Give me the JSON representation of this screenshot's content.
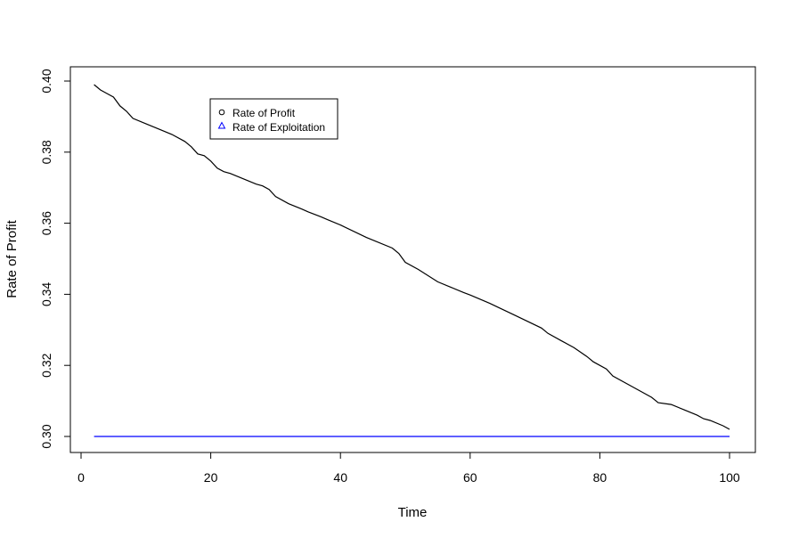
{
  "chart_data": {
    "type": "line",
    "xlabel": "Time",
    "ylabel": "Rate of Profit",
    "xlim": [
      0,
      100
    ],
    "ylim": [
      0.3,
      0.4
    ],
    "x_ticks": [
      "0",
      "20",
      "40",
      "60",
      "80",
      "100"
    ],
    "y_ticks": [
      "0.30",
      "0.32",
      "0.34",
      "0.36",
      "0.38",
      "0.40"
    ],
    "legend": {
      "position": "top-left",
      "entries": [
        {
          "label": "Rate of Profit",
          "symbol": "circle",
          "color": "#000000"
        },
        {
          "label": "Rate of Exploitation",
          "symbol": "triangle",
          "color": "#0000ff"
        }
      ]
    },
    "series": [
      {
        "name": "Rate of Profit",
        "color": "#000000",
        "points": [
          [
            2,
            0.399
          ],
          [
            3,
            0.3975
          ],
          [
            4,
            0.3965
          ],
          [
            5,
            0.3955
          ],
          [
            6,
            0.393
          ],
          [
            7,
            0.3915
          ],
          [
            8,
            0.3895
          ],
          [
            10,
            0.388
          ],
          [
            12,
            0.3865
          ],
          [
            14,
            0.385
          ],
          [
            16,
            0.383
          ],
          [
            17,
            0.3815
          ],
          [
            18,
            0.3795
          ],
          [
            19,
            0.379
          ],
          [
            20,
            0.3775
          ],
          [
            21,
            0.3755
          ],
          [
            22,
            0.3745
          ],
          [
            23,
            0.374
          ],
          [
            25,
            0.3725
          ],
          [
            27,
            0.371
          ],
          [
            28,
            0.3705
          ],
          [
            29,
            0.3695
          ],
          [
            30,
            0.3675
          ],
          [
            32,
            0.3655
          ],
          [
            34,
            0.364
          ],
          [
            35,
            0.3632
          ],
          [
            37,
            0.3618
          ],
          [
            38,
            0.361
          ],
          [
            40,
            0.3595
          ],
          [
            44,
            0.356
          ],
          [
            48,
            0.353
          ],
          [
            49,
            0.3515
          ],
          [
            50,
            0.349
          ],
          [
            52,
            0.347
          ],
          [
            55,
            0.3435
          ],
          [
            57,
            0.342
          ],
          [
            59,
            0.3405
          ],
          [
            60,
            0.3398
          ],
          [
            63,
            0.3375
          ],
          [
            67,
            0.334
          ],
          [
            71,
            0.3305
          ],
          [
            72,
            0.329
          ],
          [
            74,
            0.327
          ],
          [
            76,
            0.325
          ],
          [
            78,
            0.3225
          ],
          [
            79,
            0.321
          ],
          [
            81,
            0.319
          ],
          [
            82,
            0.317
          ],
          [
            85,
            0.314
          ],
          [
            88,
            0.311
          ],
          [
            89,
            0.3095
          ],
          [
            91,
            0.309
          ],
          [
            93,
            0.3075
          ],
          [
            95,
            0.306
          ],
          [
            96,
            0.305
          ],
          [
            97,
            0.3045
          ],
          [
            99,
            0.303
          ],
          [
            100,
            0.302
          ]
        ]
      },
      {
        "name": "Rate of Exploitation",
        "color": "#0000ff",
        "points": [
          [
            2,
            0.3
          ],
          [
            100,
            0.3
          ]
        ]
      }
    ]
  }
}
